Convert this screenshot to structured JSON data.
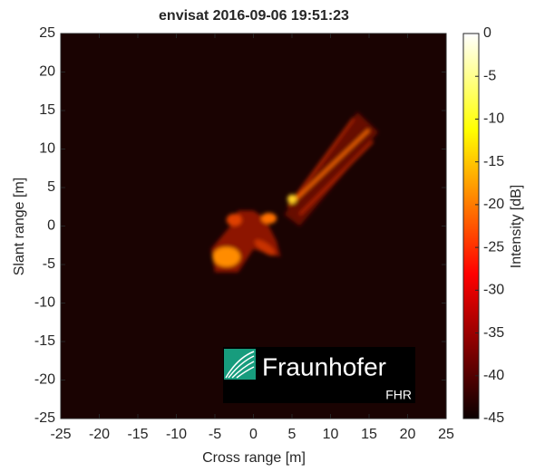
{
  "chart_data": {
    "type": "heatmap",
    "title": "envisat 2016-09-06 19:51:23",
    "xlabel": "Cross range [m]",
    "ylabel": "Slant range [m]",
    "xlim": [
      -25,
      25
    ],
    "ylim": [
      -25,
      25
    ],
    "xticks": [
      -25,
      -20,
      -15,
      -10,
      -5,
      0,
      5,
      10,
      15,
      20,
      25
    ],
    "yticks": [
      -25,
      -20,
      -15,
      -10,
      -5,
      0,
      5,
      10,
      15,
      20,
      25
    ],
    "colormap": "hot",
    "colorbar": {
      "label": "Intensity [dB]",
      "lim": [
        -45,
        0
      ],
      "ticks": [
        0,
        -5,
        -10,
        -15,
        -20,
        -25,
        -30,
        -35,
        -40,
        -45
      ]
    }
  },
  "logo": {
    "name": "Fraunhofer",
    "unit": "FHR"
  }
}
